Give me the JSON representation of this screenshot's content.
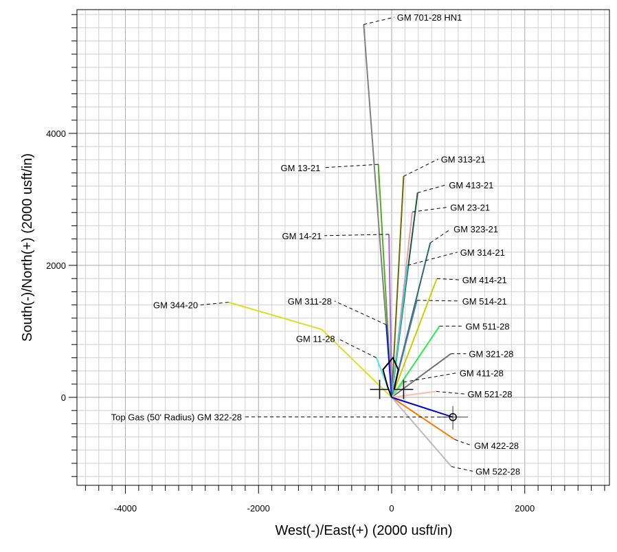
{
  "chart_data": {
    "type": "line",
    "xlabel": "West(-)/East(+) (2000 usft/in)",
    "ylabel": "South(-)/North(+) (2000 usft/in)",
    "xlim": [
      -4700,
      3300
    ],
    "ylim": [
      -1300,
      5800
    ],
    "x_ticks": [
      -4000,
      -2000,
      0,
      2000
    ],
    "y_ticks": [
      0,
      2000,
      4000
    ],
    "grid": true,
    "series": [
      {
        "name": "GM 701-28 HN1",
        "color": "#808080",
        "points": [
          [
            0,
            0
          ],
          [
            -420,
            5650
          ]
        ],
        "label_pos": [
          80,
          5760
        ]
      },
      {
        "name": "GM 13-21",
        "color": "#55aa22",
        "points": [
          [
            0,
            0
          ],
          [
            -200,
            3530
          ]
        ],
        "label_pos": [
          -1070,
          3480
        ]
      },
      {
        "name": "GM 313-21",
        "color": "#6a6a00",
        "points": [
          [
            0,
            0
          ],
          [
            180,
            3350
          ]
        ],
        "label_pos": [
          740,
          3610
        ]
      },
      {
        "name": "GM 413-21",
        "color": "#1a5a3a",
        "points": [
          [
            0,
            0
          ],
          [
            390,
            3100
          ]
        ],
        "label_pos": [
          860,
          3220
        ]
      },
      {
        "name": "GM 23-21",
        "color": "#ee99aa",
        "points": [
          [
            0,
            0
          ],
          [
            310,
            2810
          ]
        ],
        "label_pos": [
          880,
          2880
        ]
      },
      {
        "name": "GM 323-21",
        "color": "#2a6a6a",
        "points": [
          [
            0,
            0
          ],
          [
            580,
            2340
          ]
        ],
        "label_pos": [
          930,
          2550
        ]
      },
      {
        "name": "GM 14-21",
        "color": "#aa66dd",
        "points": [
          [
            0,
            0
          ],
          [
            -40,
            2470
          ]
        ],
        "label_pos": [
          -1050,
          2450
        ]
      },
      {
        "name": "GM 314-21",
        "color": "#33cccc",
        "points": [
          [
            0,
            0
          ],
          [
            240,
            2000
          ]
        ],
        "label_pos": [
          1030,
          2200
        ]
      },
      {
        "name": "GM 414-21",
        "color": "#cccc00",
        "points": [
          [
            0,
            0
          ],
          [
            680,
            1800
          ]
        ],
        "label_pos": [
          1060,
          1780
        ]
      },
      {
        "name": "GM 514-21",
        "color": "#5577aa",
        "points": [
          [
            0,
            0
          ],
          [
            380,
            1470
          ]
        ],
        "label_pos": [
          1060,
          1460
        ]
      },
      {
        "name": "GM 344-20",
        "color": "#dddd22",
        "points": [
          [
            0,
            0
          ],
          [
            -1050,
            1030
          ],
          [
            -2450,
            1440
          ]
        ],
        "label_pos": [
          -2910,
          1400
        ]
      },
      {
        "name": "GM 311-28",
        "color": "#1a1acc",
        "points": [
          [
            0,
            0
          ],
          [
            -80,
            1100
          ]
        ],
        "label_pos": [
          -900,
          1460
        ]
      },
      {
        "name": "GM 511-28",
        "color": "#22ee44",
        "points": [
          [
            0,
            0
          ],
          [
            720,
            1080
          ]
        ],
        "label_pos": [
          1110,
          1080
        ]
      },
      {
        "name": "GM 11-28",
        "color": "#44eeee",
        "points": [
          [
            0,
            0
          ],
          [
            -230,
            600
          ]
        ],
        "label_pos": [
          -850,
          890
        ]
      },
      {
        "name": "GM 321-28",
        "color": "#707070",
        "points": [
          [
            0,
            0
          ],
          [
            890,
            660
          ]
        ],
        "label_pos": [
          1160,
          660
        ]
      },
      {
        "name": "GM 411-28",
        "color": "#99dd99",
        "points": [
          [
            0,
            0
          ],
          [
            180,
            230
          ]
        ],
        "label_pos": [
          1020,
          370
        ]
      },
      {
        "name": "GM 521-28",
        "color": "#ffbbaa",
        "points": [
          [
            0,
            0
          ],
          [
            670,
            90
          ]
        ],
        "label_pos": [
          1140,
          50
        ]
      },
      {
        "name": "GM 422-28",
        "color": "#ff7700",
        "points": [
          [
            0,
            0
          ],
          [
            950,
            -640
          ]
        ],
        "label_pos": [
          1240,
          -730
        ]
      },
      {
        "name": "GM 522-28",
        "color": "#bbbbbb",
        "points": [
          [
            0,
            0
          ],
          [
            900,
            -1050
          ]
        ],
        "label_pos": [
          1260,
          -1120
        ]
      },
      {
        "name": "Top Gas (50' Radius) GM 322-28",
        "color": "#0000cc",
        "points": [
          [
            0,
            0
          ],
          [
            920,
            -300
          ]
        ],
        "label_pos": [
          -2250,
          -295
        ]
      }
    ],
    "annotations": [
      {
        "type": "target",
        "x": 920,
        "y": -300,
        "label": "Top Gas (50' Radius) GM 322-28"
      }
    ]
  }
}
